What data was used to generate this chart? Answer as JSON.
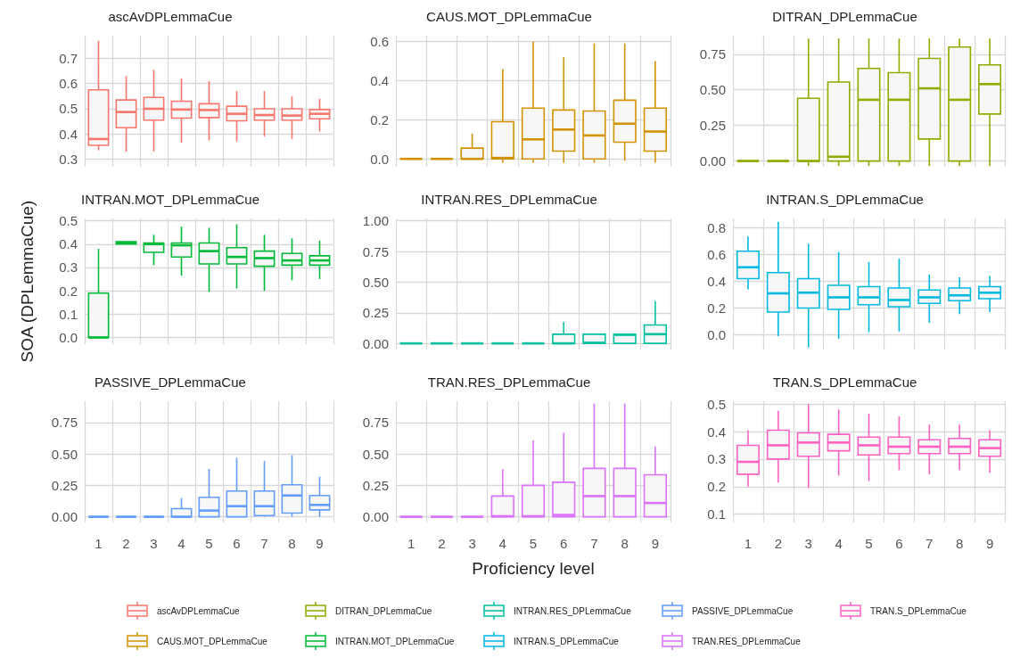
{
  "chart_data": [
    {
      "type": "box",
      "title": "ascAvDPLemmaCue",
      "categories": [
        "1",
        "2",
        "3",
        "4",
        "5",
        "6",
        "7",
        "8",
        "9"
      ],
      "ylim": [
        0.27,
        0.79
      ],
      "yticks": [
        0.3,
        0.4,
        0.5,
        0.6,
        0.7
      ],
      "grid": true,
      "legend": "bottom",
      "tick_labels": "y",
      "series": [
        {
          "name": "ascAvDPLemmaCue",
          "color": "#f8766d",
          "boxes": [
            {
              "low": 0.335,
              "q1": 0.355,
              "median": 0.38,
              "q3": 0.575,
              "high": 0.77
            },
            {
              "low": 0.33,
              "q1": 0.425,
              "median": 0.487,
              "q3": 0.535,
              "high": 0.63
            },
            {
              "low": 0.33,
              "q1": 0.455,
              "median": 0.5,
              "q3": 0.545,
              "high": 0.655
            },
            {
              "low": 0.365,
              "q1": 0.463,
              "median": 0.497,
              "q3": 0.53,
              "high": 0.62
            },
            {
              "low": 0.375,
              "q1": 0.465,
              "median": 0.495,
              "q3": 0.52,
              "high": 0.61
            },
            {
              "low": 0.37,
              "q1": 0.452,
              "median": 0.48,
              "q3": 0.51,
              "high": 0.57
            },
            {
              "low": 0.39,
              "q1": 0.455,
              "median": 0.475,
              "q3": 0.5,
              "high": 0.57
            },
            {
              "low": 0.38,
              "q1": 0.455,
              "median": 0.473,
              "q3": 0.5,
              "high": 0.55
            },
            {
              "low": 0.41,
              "q1": 0.46,
              "median": 0.48,
              "q3": 0.497,
              "high": 0.54
            }
          ]
        }
      ]
    },
    {
      "type": "box",
      "title": "CAUS.MOT_DPLemmaCue",
      "categories": [
        "1",
        "2",
        "3",
        "4",
        "5",
        "6",
        "7",
        "8",
        "9"
      ],
      "ylim": [
        -0.04,
        0.63
      ],
      "yticks": [
        {
          "value": 0,
          "label": "0.0"
        },
        0.2,
        0.4,
        0.6
      ],
      "grid": true,
      "legend": "bottom",
      "tick_labels": "y",
      "series": [
        {
          "name": "CAUS.MOT_DPLemmaCue",
          "color": "#d39200",
          "boxes": [
            {
              "low": 0,
              "q1": 0,
              "median": 0,
              "q3": 0,
              "high": 0
            },
            {
              "low": 0,
              "q1": 0,
              "median": 0,
              "q3": 0,
              "high": 0
            },
            {
              "low": 0,
              "q1": 0,
              "median": 0,
              "q3": 0.055,
              "high": 0.13
            },
            {
              "low": -0.02,
              "q1": 0,
              "median": 0.005,
              "q3": 0.19,
              "high": 0.46
            },
            {
              "low": -0.02,
              "q1": 0,
              "median": 0.1,
              "q3": 0.26,
              "high": 0.6
            },
            {
              "low": -0.02,
              "q1": 0.04,
              "median": 0.15,
              "q3": 0.25,
              "high": 0.52
            },
            {
              "low": -0.02,
              "q1": 0,
              "median": 0.12,
              "q3": 0.245,
              "high": 0.59
            },
            {
              "low": -0.01,
              "q1": 0.085,
              "median": 0.18,
              "q3": 0.3,
              "high": 0.59
            },
            {
              "low": -0.02,
              "q1": 0.04,
              "median": 0.14,
              "q3": 0.26,
              "high": 0.5
            }
          ]
        }
      ]
    },
    {
      "type": "box",
      "title": "DITRAN_DPLemmaCue",
      "categories": [
        "1",
        "2",
        "3",
        "4",
        "5",
        "6",
        "7",
        "8",
        "9"
      ],
      "ylim": [
        -0.04,
        0.88
      ],
      "yticks": [
        {
          "value": 0,
          "label": "0.00"
        },
        {
          "value": 0.25,
          "label": "0.25"
        },
        {
          "value": 0.5,
          "label": "0.50"
        },
        {
          "value": 0.75,
          "label": "0.75"
        }
      ],
      "grid": true,
      "legend": "bottom",
      "tick_labels": "y",
      "series": [
        {
          "name": "DITRAN_DPLemmaCue",
          "color": "#93aa00",
          "boxes": [
            {
              "low": 0,
              "q1": 0,
              "median": 0,
              "q3": 0,
              "high": 0
            },
            {
              "low": 0,
              "q1": 0,
              "median": 0,
              "q3": 0,
              "high": 0
            },
            {
              "low": -0.035,
              "q1": 0,
              "median": 0,
              "q3": 0.44,
              "high": 0.86
            },
            {
              "low": -0.035,
              "q1": 0,
              "median": 0.03,
              "q3": 0.555,
              "high": 0.86
            },
            {
              "low": -0.035,
              "q1": 0,
              "median": 0.43,
              "q3": 0.65,
              "high": 0.86
            },
            {
              "low": -0.035,
              "q1": 0,
              "median": 0.43,
              "q3": 0.62,
              "high": 0.86
            },
            {
              "low": -0.035,
              "q1": 0.155,
              "median": 0.51,
              "q3": 0.72,
              "high": 0.86
            },
            {
              "low": -0.035,
              "q1": 0,
              "median": 0.43,
              "q3": 0.8,
              "high": 0.86
            },
            {
              "low": -0.035,
              "q1": 0.33,
              "median": 0.54,
              "q3": 0.675,
              "high": 0.86
            }
          ]
        }
      ]
    },
    {
      "type": "box",
      "title": "INTRAN.MOT_DPLemmaCue",
      "ylabel": "SOA (DPLemmaCue)",
      "categories": [
        "1",
        "2",
        "3",
        "4",
        "5",
        "6",
        "7",
        "8",
        "9"
      ],
      "ylim": [
        -0.03,
        0.51
      ],
      "yticks": [
        {
          "value": 0,
          "label": "0.0"
        },
        0.1,
        0.2,
        0.3,
        0.4,
        0.5
      ],
      "grid": true,
      "legend": "bottom",
      "tick_labels": "y",
      "series": [
        {
          "name": "INTRAN.MOT_DPLemmaCue",
          "color": "#00ba38",
          "boxes": [
            {
              "low": 0,
              "q1": 0,
              "median": 0,
              "q3": 0.19,
              "high": 0.38
            },
            {
              "low": 0.4,
              "q1": 0.4,
              "median": 0.405,
              "q3": 0.41,
              "high": 0.41
            },
            {
              "low": 0.31,
              "q1": 0.365,
              "median": 0.4,
              "q3": 0.405,
              "high": 0.44
            },
            {
              "low": 0.265,
              "q1": 0.345,
              "median": 0.395,
              "q3": 0.405,
              "high": 0.475
            },
            {
              "low": 0.195,
              "q1": 0.315,
              "median": 0.37,
              "q3": 0.405,
              "high": 0.47
            },
            {
              "low": 0.21,
              "q1": 0.315,
              "median": 0.345,
              "q3": 0.385,
              "high": 0.485
            },
            {
              "low": 0.2,
              "q1": 0.305,
              "median": 0.34,
              "q3": 0.37,
              "high": 0.44
            },
            {
              "low": 0.245,
              "q1": 0.31,
              "median": 0.33,
              "q3": 0.36,
              "high": 0.425
            },
            {
              "low": 0.25,
              "q1": 0.31,
              "median": 0.33,
              "q3": 0.35,
              "high": 0.415
            }
          ]
        }
      ]
    },
    {
      "type": "box",
      "title": "INTRAN.RES_DPLemmaCue",
      "categories": [
        "1",
        "2",
        "3",
        "4",
        "5",
        "6",
        "7",
        "8",
        "9"
      ],
      "ylim": [
        -0.05,
        1.02
      ],
      "yticks": [
        {
          "value": 0,
          "label": "0.00"
        },
        {
          "value": 0.25,
          "label": "0.25"
        },
        {
          "value": 0.5,
          "label": "0.50"
        },
        {
          "value": 0.75,
          "label": "0.75"
        },
        {
          "value": 1,
          "label": "1.00"
        }
      ],
      "grid": true,
      "legend": "bottom",
      "tick_labels": "y",
      "series": [
        {
          "name": "INTRAN.RES_DPLemmaCue",
          "color": "#00c19f",
          "boxes": [
            {
              "low": 0,
              "q1": 0,
              "median": 0,
              "q3": 0,
              "high": 0
            },
            {
              "low": 0,
              "q1": 0,
              "median": 0,
              "q3": 0,
              "high": 0
            },
            {
              "low": 0,
              "q1": 0,
              "median": 0,
              "q3": 0,
              "high": 0
            },
            {
              "low": 0,
              "q1": 0,
              "median": 0,
              "q3": 0,
              "high": 0
            },
            {
              "low": 0,
              "q1": 0,
              "median": 0,
              "q3": 0,
              "high": 0
            },
            {
              "low": 0,
              "q1": 0,
              "median": 0,
              "q3": 0.075,
              "high": 0.175
            },
            {
              "low": 0,
              "q1": 0,
              "median": 0.005,
              "q3": 0.075,
              "high": 0.075
            },
            {
              "low": 0,
              "q1": 0,
              "median": 0.07,
              "q3": 0.075,
              "high": 0.075
            },
            {
              "low": 0,
              "q1": 0,
              "median": 0.075,
              "q3": 0.15,
              "high": 0.345
            }
          ]
        }
      ]
    },
    {
      "type": "box",
      "title": "INTRAN.S_DPLemmaCue",
      "categories": [
        "1",
        "2",
        "3",
        "4",
        "5",
        "6",
        "7",
        "8",
        "9"
      ],
      "ylim": [
        -0.11,
        0.87
      ],
      "yticks": [
        {
          "value": 0,
          "label": "0.0"
        },
        0.2,
        0.4,
        0.6,
        0.8
      ],
      "grid": true,
      "legend": "bottom",
      "tick_labels": "y",
      "series": [
        {
          "name": "INTRAN.S_DPLemmaCue",
          "color": "#00b9e3",
          "boxes": [
            {
              "low": 0.34,
              "q1": 0.42,
              "median": 0.505,
              "q3": 0.625,
              "high": 0.735
            },
            {
              "low": -0.01,
              "q1": 0.17,
              "median": 0.31,
              "q3": 0.465,
              "high": 0.845
            },
            {
              "low": -0.095,
              "q1": 0.2,
              "median": 0.315,
              "q3": 0.42,
              "high": 0.68
            },
            {
              "low": -0.03,
              "q1": 0.19,
              "median": 0.28,
              "q3": 0.37,
              "high": 0.62
            },
            {
              "low": 0.02,
              "q1": 0.225,
              "median": 0.28,
              "q3": 0.36,
              "high": 0.545
            },
            {
              "low": 0.025,
              "q1": 0.21,
              "median": 0.26,
              "q3": 0.35,
              "high": 0.57
            },
            {
              "low": 0.09,
              "q1": 0.235,
              "median": 0.28,
              "q3": 0.335,
              "high": 0.45
            },
            {
              "low": 0.155,
              "q1": 0.255,
              "median": 0.295,
              "q3": 0.35,
              "high": 0.43
            },
            {
              "low": 0.17,
              "q1": 0.27,
              "median": 0.315,
              "q3": 0.36,
              "high": 0.44
            }
          ]
        }
      ]
    },
    {
      "type": "box",
      "title": "PASSIVE_DPLemmaCue",
      "categories": [
        "1",
        "2",
        "3",
        "4",
        "5",
        "6",
        "7",
        "8",
        "9"
      ],
      "ylim": [
        -0.045,
        0.92
      ],
      "yticks": [
        {
          "value": 0,
          "label": "0.00"
        },
        {
          "value": 0.25,
          "label": "0.25"
        },
        {
          "value": 0.5,
          "label": "0.50"
        },
        {
          "value": 0.75,
          "label": "0.75"
        }
      ],
      "grid": true,
      "legend": "bottom",
      "series": [
        {
          "name": "PASSIVE_DPLemmaCue",
          "color": "#619cff",
          "boxes": [
            {
              "low": 0,
              "q1": 0,
              "median": 0,
              "q3": 0,
              "high": 0
            },
            {
              "low": 0,
              "q1": 0,
              "median": 0,
              "q3": 0,
              "high": 0
            },
            {
              "low": 0,
              "q1": 0,
              "median": 0,
              "q3": 0,
              "high": 0
            },
            {
              "low": 0,
              "q1": 0,
              "median": 0,
              "q3": 0.065,
              "high": 0.15
            },
            {
              "low": 0,
              "q1": 0,
              "median": 0.05,
              "q3": 0.155,
              "high": 0.38
            },
            {
              "low": 0,
              "q1": 0,
              "median": 0.085,
              "q3": 0.205,
              "high": 0.47
            },
            {
              "low": 0,
              "q1": 0.01,
              "median": 0.085,
              "q3": 0.205,
              "high": 0.445
            },
            {
              "low": 0,
              "q1": 0.03,
              "median": 0.17,
              "q3": 0.255,
              "high": 0.49
            },
            {
              "low": 0,
              "q1": 0.055,
              "median": 0.095,
              "q3": 0.17,
              "high": 0.32
            }
          ]
        }
      ]
    },
    {
      "type": "box",
      "title": "TRAN.RES_DPLemmaCue",
      "xlabel": "Proficiency level",
      "categories": [
        "1",
        "2",
        "3",
        "4",
        "5",
        "6",
        "7",
        "8",
        "9"
      ],
      "ylim": [
        -0.045,
        0.92
      ],
      "yticks": [
        {
          "value": 0,
          "label": "0.00"
        },
        {
          "value": 0.25,
          "label": "0.25"
        },
        {
          "value": 0.5,
          "label": "0.50"
        },
        {
          "value": 0.75,
          "label": "0.75"
        }
      ],
      "grid": true,
      "legend": "bottom",
      "series": [
        {
          "name": "TRAN.RES_DPLemmaCue",
          "color": "#db72fb",
          "boxes": [
            {
              "low": 0,
              "q1": 0,
              "median": 0,
              "q3": 0,
              "high": 0
            },
            {
              "low": 0,
              "q1": 0,
              "median": 0,
              "q3": 0,
              "high": 0
            },
            {
              "low": 0,
              "q1": 0,
              "median": 0,
              "q3": 0,
              "high": 0
            },
            {
              "low": 0,
              "q1": 0,
              "median": 0.005,
              "q3": 0.165,
              "high": 0.38
            },
            {
              "low": 0,
              "q1": 0,
              "median": 0.005,
              "q3": 0.25,
              "high": 0.61
            },
            {
              "low": 0,
              "q1": 0,
              "median": 0.015,
              "q3": 0.275,
              "high": 0.67
            },
            {
              "low": 0,
              "q1": 0,
              "median": 0.165,
              "q3": 0.385,
              "high": 0.9
            },
            {
              "low": 0,
              "q1": 0,
              "median": 0.165,
              "q3": 0.385,
              "high": 0.9
            },
            {
              "low": 0,
              "q1": 0,
              "median": 0.11,
              "q3": 0.335,
              "high": 0.56
            }
          ]
        }
      ]
    },
    {
      "type": "box",
      "title": "TRAN.S_DPLemmaCue",
      "categories": [
        "1",
        "2",
        "3",
        "4",
        "5",
        "6",
        "7",
        "8",
        "9"
      ],
      "ylim": [
        0.07,
        0.51
      ],
      "yticks": [
        0.1,
        0.2,
        0.3,
        0.4,
        0.5
      ],
      "grid": true,
      "legend": "bottom",
      "series": [
        {
          "name": "TRAN.S_DPLemmaCue",
          "color": "#ff61c3",
          "boxes": [
            {
              "low": 0.2,
              "q1": 0.245,
              "median": 0.29,
              "q3": 0.35,
              "high": 0.405
            },
            {
              "low": 0.215,
              "q1": 0.3,
              "median": 0.35,
              "q3": 0.405,
              "high": 0.475
            },
            {
              "low": 0.195,
              "q1": 0.31,
              "median": 0.36,
              "q3": 0.395,
              "high": 0.5
            },
            {
              "low": 0.24,
              "q1": 0.33,
              "median": 0.36,
              "q3": 0.39,
              "high": 0.48
            },
            {
              "low": 0.22,
              "q1": 0.315,
              "median": 0.35,
              "q3": 0.38,
              "high": 0.465
            },
            {
              "low": 0.26,
              "q1": 0.32,
              "median": 0.345,
              "q3": 0.38,
              "high": 0.455
            },
            {
              "low": 0.245,
              "q1": 0.32,
              "median": 0.345,
              "q3": 0.37,
              "high": 0.425
            },
            {
              "low": 0.26,
              "q1": 0.32,
              "median": 0.345,
              "q3": 0.375,
              "high": 0.425
            },
            {
              "low": 0.25,
              "q1": 0.31,
              "median": 0.34,
              "q3": 0.37,
              "high": 0.405
            }
          ]
        }
      ]
    }
  ]
}
